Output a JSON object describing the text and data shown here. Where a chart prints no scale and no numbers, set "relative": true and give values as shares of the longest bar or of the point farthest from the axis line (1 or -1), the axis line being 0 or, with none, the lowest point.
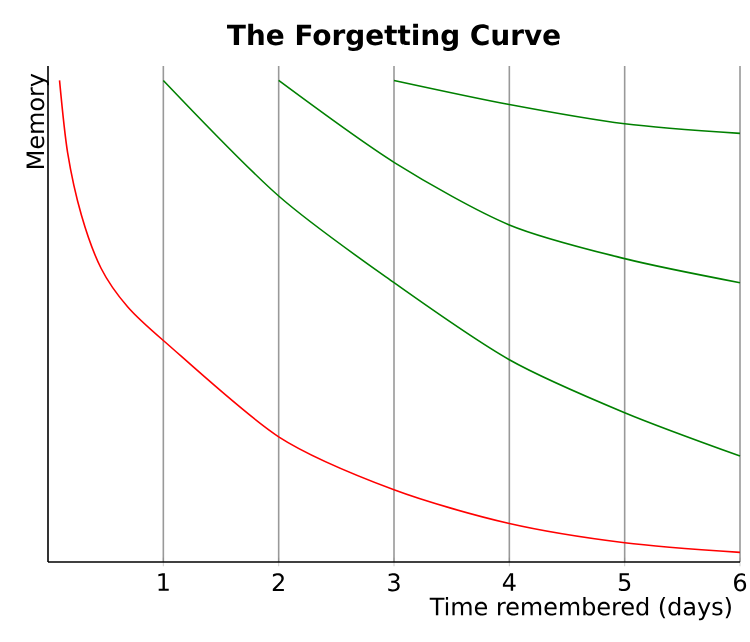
{
  "chart_data": {
    "type": "line",
    "title": "The Forgetting Curve",
    "xlabel": "Time remembered (days)",
    "ylabel": "Memory",
    "relative": true,
    "xlim": [
      0,
      6
    ],
    "xticks": [
      1,
      2,
      3,
      4,
      5,
      6
    ],
    "grid": "x",
    "marker": "none",
    "line_style": "solid",
    "series": [
      {
        "color": "#ff0000",
        "x": [
          0.1,
          0.17,
          0.29,
          0.46,
          0.69,
          1,
          2,
          3,
          4,
          5,
          6
        ],
        "values": [
          1.0,
          0.85,
          0.72,
          0.61,
          0.53,
          0.46,
          0.26,
          0.15,
          0.08,
          0.04,
          0.02
        ]
      },
      {
        "color": "#008000",
        "x": [
          1,
          2,
          3,
          4,
          5,
          6
        ],
        "values": [
          1.0,
          0.76,
          0.58,
          0.42,
          0.31,
          0.22
        ]
      },
      {
        "color": "#008000",
        "x": [
          2,
          3,
          4,
          5,
          6
        ],
        "values": [
          1.0,
          0.83,
          0.7,
          0.63,
          0.58
        ]
      },
      {
        "color": "#008000",
        "x": [
          3,
          4,
          5,
          6
        ],
        "values": [
          1.0,
          0.95,
          0.91,
          0.89
        ]
      }
    ]
  }
}
